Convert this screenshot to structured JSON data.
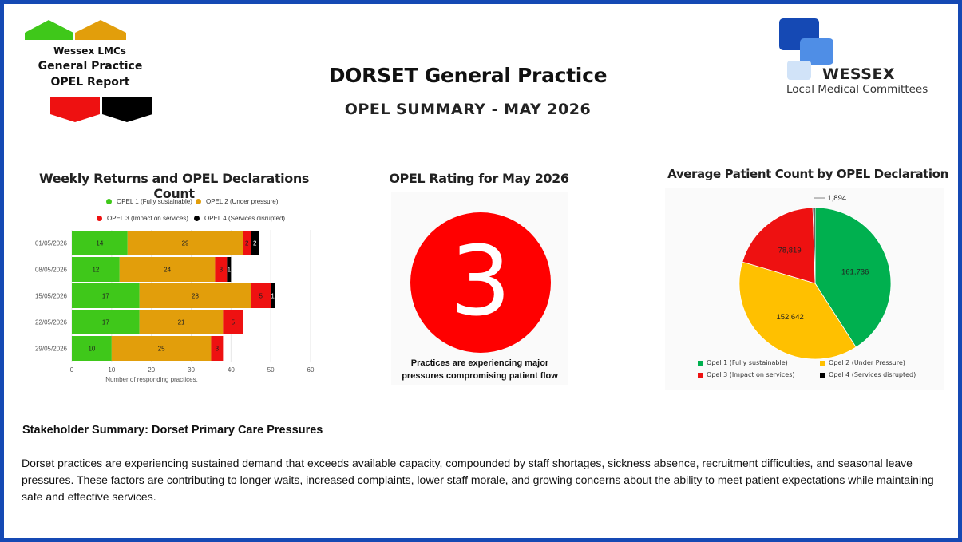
{
  "header": {
    "badge_line1": "Wessex LMCs",
    "badge_line2": "General Practice",
    "badge_line3": "OPEL Report",
    "title": "DORSET General Practice",
    "subtitle": "OPEL SUMMARY - MAY 2026",
    "logo_name": "WESSEX",
    "logo_tagline": "Local Medical Committees"
  },
  "colors": {
    "frame": "#1549b4",
    "opel1": "#3fc81a",
    "opel2": "#e29e0b",
    "opel3": "#ee1111",
    "opel4": "#000000",
    "pie_opel1": "#00b04f",
    "pie_opel2": "#ffc000",
    "pie_opel3": "#ee1111",
    "pie_opel4": "#000000",
    "rating": "#ff0000"
  },
  "bar_panel": {
    "title": "Weekly Returns and OPEL Declarations Count",
    "legend": [
      "OPEL 1 (Fully sustainable)",
      "OPEL 2 (Under pressure)",
      "OPEL 3 (Impact on services)",
      "OPEL 4 (Services disrupted)"
    ]
  },
  "rating_panel": {
    "title": "OPEL Rating for May 2026",
    "rating": "3",
    "caption_line1": "Practices are experiencing major",
    "caption_line2": "pressures compromising patient flow"
  },
  "pie_panel": {
    "title": "Average Patient Count by OPEL Declaration",
    "legend": [
      "Opel 1 (Fully sustainable)",
      "Opel 2 (Under Pressure)",
      "Opel 3 (Impact on services)",
      "Opel 4 (Services disrupted)"
    ]
  },
  "chart_data": [
    {
      "type": "bar",
      "orientation": "horizontal",
      "stacked": true,
      "title": "Weekly Returns and OPEL Declarations Count",
      "categories": [
        "01/05/2026",
        "08/05/2026",
        "15/05/2026",
        "22/05/2026",
        "29/05/2026"
      ],
      "series": [
        {
          "name": "OPEL 1 (Fully sustainable)",
          "values": [
            14,
            12,
            17,
            17,
            10
          ]
        },
        {
          "name": "OPEL 2 (Under pressure)",
          "values": [
            29,
            24,
            28,
            21,
            25
          ]
        },
        {
          "name": "OPEL 3 (Impact on services)",
          "values": [
            2,
            3,
            5,
            5,
            3
          ]
        },
        {
          "name": "OPEL 4 (Services disrupted)",
          "values": [
            2,
            1,
            1,
            0,
            0
          ]
        }
      ],
      "xlabel": "Number of responding practices.",
      "xlim": [
        0,
        60
      ],
      "xticks": [
        0,
        10,
        20,
        30,
        40,
        50,
        60
      ],
      "grid": true,
      "legend_position": "top"
    },
    {
      "type": "pie",
      "title": "Average Patient Count by OPEL Declaration",
      "labels": [
        "Opel 1 (Fully sustainable)",
        "Opel 2 (Under Pressure)",
        "Opel 3 (Impact on services)",
        "Opel 4 (Services disrupted)"
      ],
      "values": [
        161736,
        152642,
        78819,
        1894
      ],
      "value_labels": [
        "161,736",
        "152,642",
        "78,819",
        "1,894"
      ],
      "legend_position": "bottom"
    }
  ],
  "summary": {
    "heading": "Stakeholder Summary: Dorset Primary Care Pressures",
    "body": "Dorset practices are experiencing sustained demand that exceeds available capacity, compounded by staff shortages, sickness absence, recruitment difficulties, and seasonal leave pressures. These factors are contributing to longer waits, increased complaints, lower staff morale, and growing concerns about the ability to meet patient expectations while maintaining safe and effective services."
  }
}
